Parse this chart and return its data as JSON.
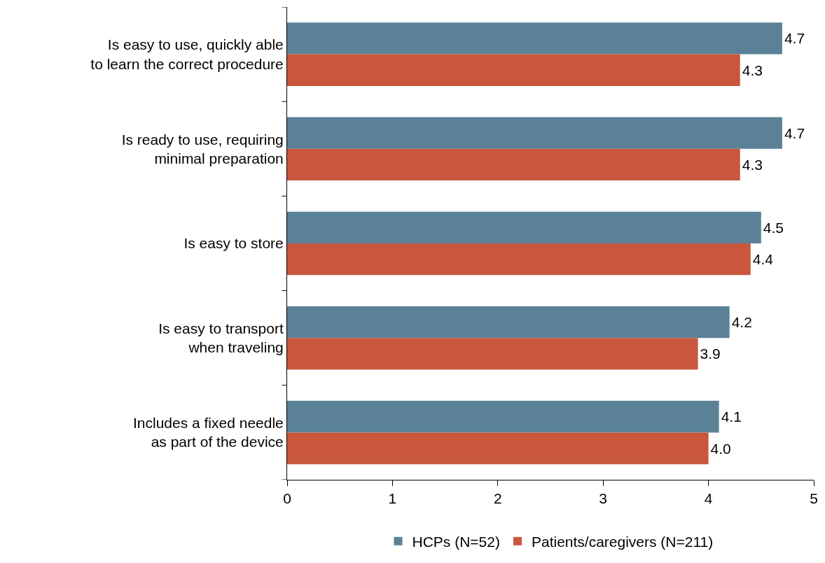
{
  "chart_data": {
    "type": "bar",
    "orientation": "horizontal",
    "categories": [
      "Is easy to use, quickly able\nto learn the correct procedure",
      "Is ready to use, requiring\nminimal preparation",
      "Is easy to store",
      "Is easy to transport\nwhen traveling",
      "Includes a fixed needle\nas part of the device"
    ],
    "series": [
      {
        "name": "HCPs (N=52)",
        "color": "#5b8197",
        "values": [
          4.7,
          4.7,
          4.5,
          4.2,
          4.1
        ],
        "value_labels": [
          "4.7",
          "4.7",
          "4.5",
          "4.2",
          "4.1"
        ]
      },
      {
        "name": "Patients/caregivers (N=211)",
        "color": "#c8573d",
        "values": [
          4.3,
          4.3,
          4.4,
          3.9,
          4.0
        ],
        "value_labels": [
          "4.3",
          "4.3",
          "4.4",
          "3.9",
          "4.0"
        ]
      }
    ],
    "xlim": [
      0,
      5
    ],
    "xticks": [
      0,
      1,
      2,
      3,
      4,
      5
    ],
    "legend": "bottom"
  }
}
